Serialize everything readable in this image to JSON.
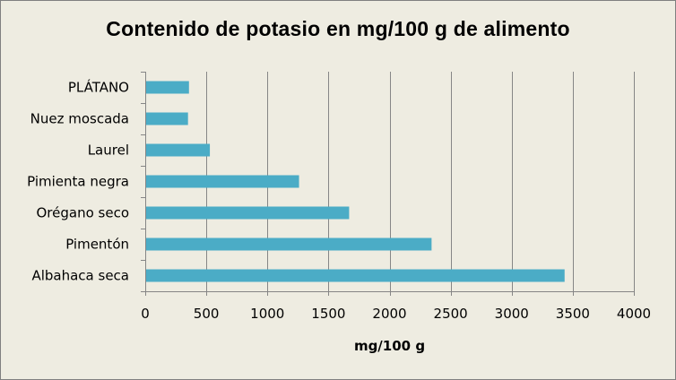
{
  "chart_data": {
    "type": "bar",
    "orientation": "horizontal",
    "title": "Contenido de potasio en mg/100 g de alimento",
    "xlabel": "mg/100 g",
    "ylabel": "",
    "categories": [
      "Albahaca seca",
      "Pimentón",
      "Orégano seco",
      "Pimienta negra",
      "Laurel",
      "Nuez moscada",
      "PLÁTANO"
    ],
    "values": [
      3433,
      2344,
      1669,
      1259,
      529,
      350,
      358
    ],
    "xlim": [
      0,
      4000
    ],
    "xticks": [
      0,
      500,
      1000,
      1500,
      2000,
      2500,
      3000,
      3500,
      4000
    ],
    "xtick_labels": [
      "0",
      "500",
      "1000",
      "1500",
      "2000",
      "2500",
      "3000",
      "3500",
      "4000"
    ],
    "grid": "vertical",
    "legend": "none",
    "colors": {
      "bar": "#4bacc6",
      "background": "#eeece1",
      "gridline": "#868686",
      "border": "#7f7f7f"
    }
  }
}
